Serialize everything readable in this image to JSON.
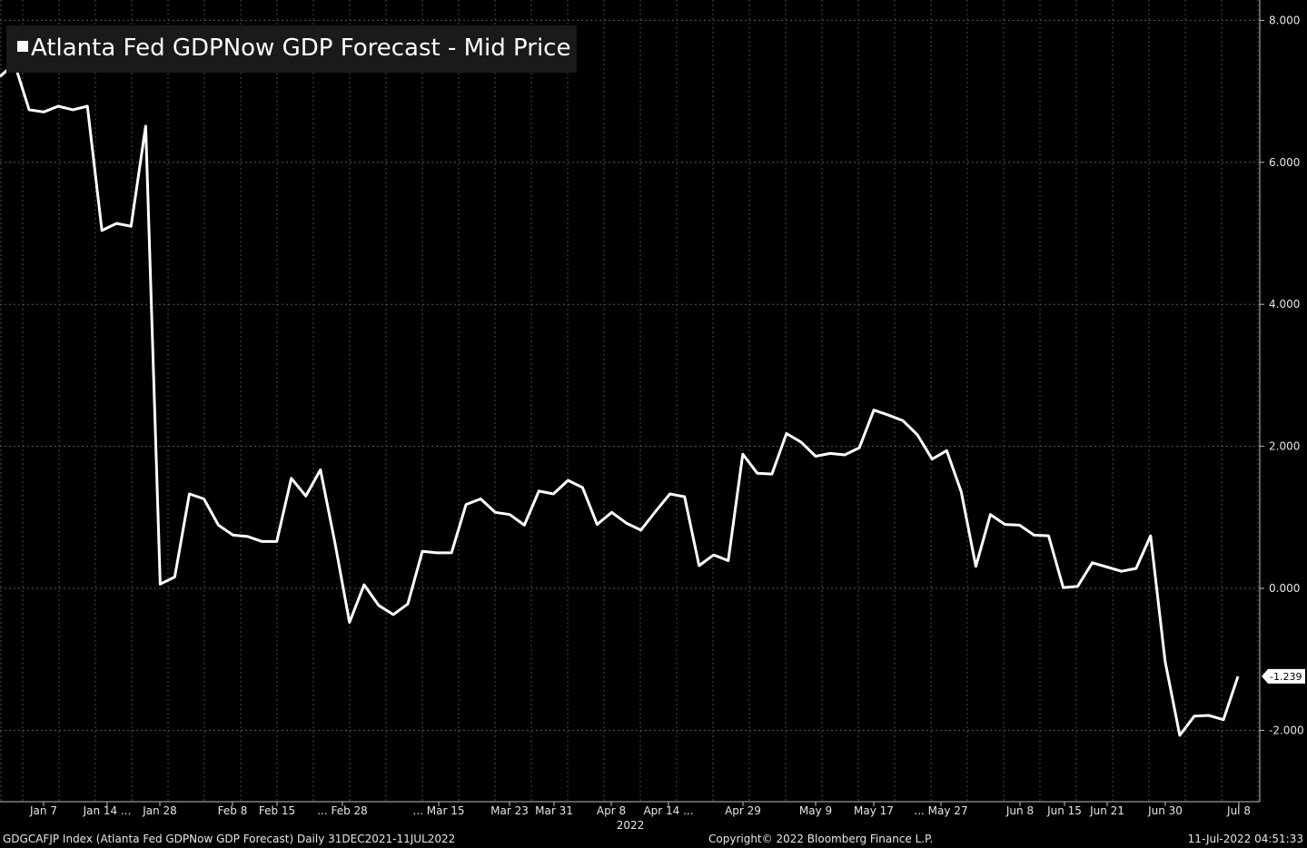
{
  "legend": {
    "label": "Atlanta Fed GDPNow GDP Forecast - Mid Price",
    "swatch_color": "#ffffff"
  },
  "footer": {
    "left": "GDGCAFJP Index (Atlanta Fed GDPNow GDP Forecast)  Daily 31DEC2021-11JUL2022",
    "center": "Copyright© 2022 Bloomberg Finance L.P.",
    "right": "11-Jul-2022 04:51:33"
  },
  "chart_data": {
    "type": "line",
    "title": "",
    "xlabel": "2022",
    "ylabel": "",
    "ylim": [
      -2.9,
      8.2
    ],
    "grid": true,
    "y_axis_position": "right",
    "yticks": [
      "8.000",
      "6.000",
      "4.000",
      "2.000",
      "0.000",
      "-2.000"
    ],
    "ytick_values": [
      8,
      6,
      4,
      2,
      0,
      -2
    ],
    "xticks": [
      "Jan 7",
      "Jan 14 ...",
      "Jan 28",
      "Feb 8",
      "Feb 15",
      "... Feb 28",
      "... Mar 15",
      "Mar 23",
      "Mar 31",
      "Apr 8",
      "Apr 14 ...",
      "Apr 29",
      "May 9",
      "May 17",
      "... May 27",
      "Jun 8",
      "Jun 15",
      "Jun 21",
      "Jun 30",
      "Jul 8"
    ],
    "last_value_label": "-1.239",
    "last_value": -1.239,
    "line_color": "#ffffff",
    "series": [
      {
        "values": [
          7.21,
          7.39,
          6.74,
          6.71,
          6.79,
          6.74,
          6.79,
          5.04,
          5.14,
          5.1,
          6.51,
          0.06,
          0.16,
          1.33,
          1.26,
          0.89,
          0.75,
          0.73,
          0.66,
          0.66,
          1.55,
          1.3,
          1.67,
          0.64,
          -0.48,
          0.05,
          -0.24,
          -0.37,
          -0.22,
          0.52,
          0.5,
          0.5,
          1.18,
          1.26,
          1.07,
          1.04,
          0.89,
          1.37,
          1.33,
          1.52,
          1.42,
          0.9,
          1.07,
          0.92,
          0.82,
          1.08,
          1.33,
          1.29,
          0.32,
          0.47,
          0.39,
          1.89,
          1.62,
          1.61,
          2.18,
          2.06,
          1.86,
          1.9,
          1.88,
          1.98,
          2.51,
          2.44,
          2.36,
          2.16,
          1.82,
          1.94,
          1.36,
          0.31,
          1.04,
          0.9,
          0.89,
          0.75,
          0.74,
          0.01,
          0.03,
          0.36,
          0.3,
          0.24,
          0.28,
          0.74,
          -1.03,
          -2.07,
          -1.8,
          -1.79,
          -1.85,
          -1.24
        ]
      }
    ]
  }
}
